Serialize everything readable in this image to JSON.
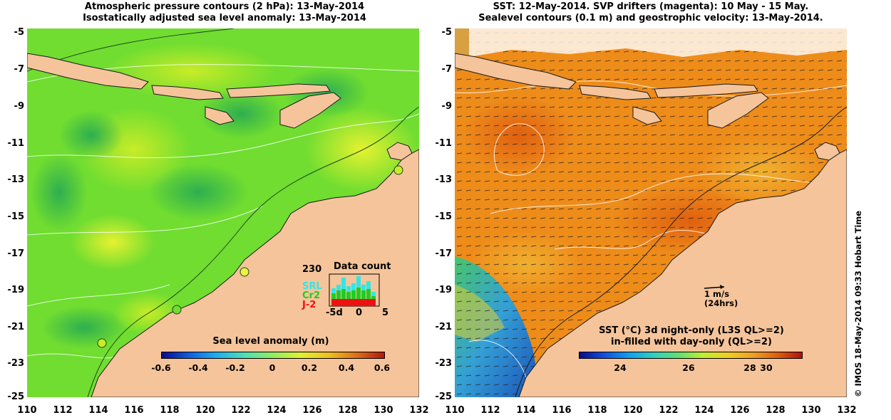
{
  "left_panel": {
    "title_line1": "Atmospheric pressure contours (2 hPa): 13-May-2014",
    "title_line2": "Isostatically adjusted sea level anomaly: 13-May-2014",
    "legend_title": "Sea level anomaly (m)",
    "colorbar_ticks": [
      "-0.6",
      "-0.4",
      "-0.2",
      "0",
      "0.2",
      "0.4",
      "0.6"
    ],
    "inset": {
      "title": "Data count",
      "max_label": "230",
      "missions": [
        {
          "label": "SRL",
          "color": "#33e6e6"
        },
        {
          "label": "Cr2",
          "color": "#22cc22"
        },
        {
          "label": "J-2",
          "color": "#ee1111"
        }
      ],
      "x_ticks": [
        "-5d",
        "0",
        "5"
      ]
    }
  },
  "right_panel": {
    "title_line1": "SST: 12-May-2014. SVP drifters (magenta): 10 May - 15 May.",
    "title_line2": "Sealevel contours (0.1 m) and geostrophic velocity: 13-May-2014.",
    "legend_title_line1": "SST (°C)  3d night-only (L3S QL>=2)",
    "legend_title_line2": "in-filled with day-only (QL>=2)",
    "colorbar_ticks": [
      "24",
      "26",
      "28",
      "30"
    ],
    "velocity_scale_value": "1 m/s",
    "velocity_scale_period": "(24hrs)"
  },
  "y_axis_ticks": [
    "-5",
    "-7",
    "-9",
    "-11",
    "-13",
    "-15",
    "-17",
    "-19",
    "-21",
    "-23",
    "-25"
  ],
  "x_axis_ticks": [
    "110",
    "112",
    "114",
    "116",
    "118",
    "120",
    "122",
    "124",
    "126",
    "128",
    "130",
    "132"
  ],
  "copyright": "© IMOS 18-May-2014 09:33 Hobart Time",
  "map_data": {
    "lon_range": [
      110,
      132
    ],
    "lat_range": [
      -25,
      -5
    ],
    "colors": {
      "land": "#f5c49a",
      "sla_background": "#70dd30",
      "sst_background": "#ee8c1a",
      "drifter": "#ff00ff"
    }
  }
}
